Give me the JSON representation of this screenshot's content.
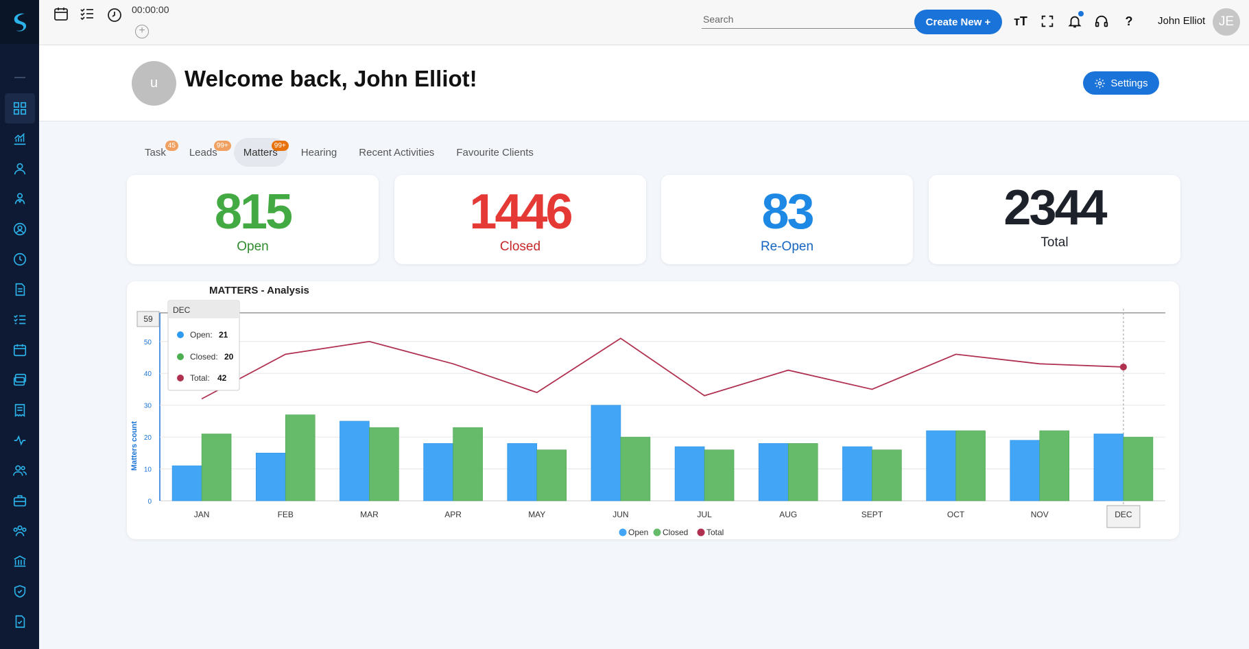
{
  "topbar": {
    "timer": "00:00:00",
    "search_placeholder": "Search",
    "create_new_label": "Create New +",
    "text_size_label": "тT",
    "help_label": "?",
    "user_name": "John Elliot",
    "user_initials": "JE"
  },
  "header": {
    "avatar_letter": "u",
    "welcome_text": "Welcome back, John Elliot!",
    "settings_label": "Settings"
  },
  "tabs": [
    {
      "label": "Task",
      "badge": "45"
    },
    {
      "label": "Leads",
      "badge": "99+"
    },
    {
      "label": "Matters",
      "badge": "99+",
      "active": true
    },
    {
      "label": "Hearing",
      "badge": ""
    },
    {
      "label": "Recent Activities",
      "badge": ""
    },
    {
      "label": "Favourite Clients",
      "badge": ""
    }
  ],
  "stats": {
    "open": {
      "value": "815",
      "label": "Open",
      "color": "#43a943"
    },
    "closed": {
      "value": "1446",
      "label": "Closed",
      "color": "#e53935"
    },
    "reopen": {
      "value": "83",
      "label": "Re-Open",
      "color": "#1e88e5"
    },
    "total": {
      "value": "2344",
      "label": "Total",
      "color": "#1d2129"
    }
  },
  "chart_data": {
    "type": "bar",
    "title": "MATTERS - Analysis",
    "ylabel": "Matters count",
    "categories": [
      "JAN",
      "FEB",
      "MAR",
      "APR",
      "MAY",
      "JUN",
      "JUL",
      "AUG",
      "SEPT",
      "OCT",
      "NOV",
      "DEC"
    ],
    "series": [
      {
        "name": "Open",
        "kind": "bar",
        "color": "#42a5f5",
        "values": [
          11,
          15,
          25,
          18,
          18,
          30,
          17,
          18,
          17,
          22,
          19,
          21
        ]
      },
      {
        "name": "Closed",
        "kind": "bar",
        "color": "#66bb6a",
        "values": [
          21,
          27,
          23,
          23,
          16,
          20,
          16,
          18,
          16,
          22,
          22,
          20
        ]
      },
      {
        "name": "Total",
        "kind": "line",
        "color": "#b03050",
        "values": [
          32,
          46,
          50,
          43,
          34,
          51,
          33,
          41,
          35,
          46,
          43,
          42
        ]
      }
    ],
    "yticks": [
      0,
      10,
      20,
      30,
      40,
      50
    ],
    "ylim": [
      0,
      59
    ],
    "crosshair_value": "59",
    "tooltip": {
      "title": "DEC",
      "open_label": "Open:",
      "open": "21",
      "closed_label": "Closed:",
      "closed": "20",
      "total_label": "Total:",
      "total": "42"
    },
    "legend_position": "bottom-center",
    "grid": true
  }
}
